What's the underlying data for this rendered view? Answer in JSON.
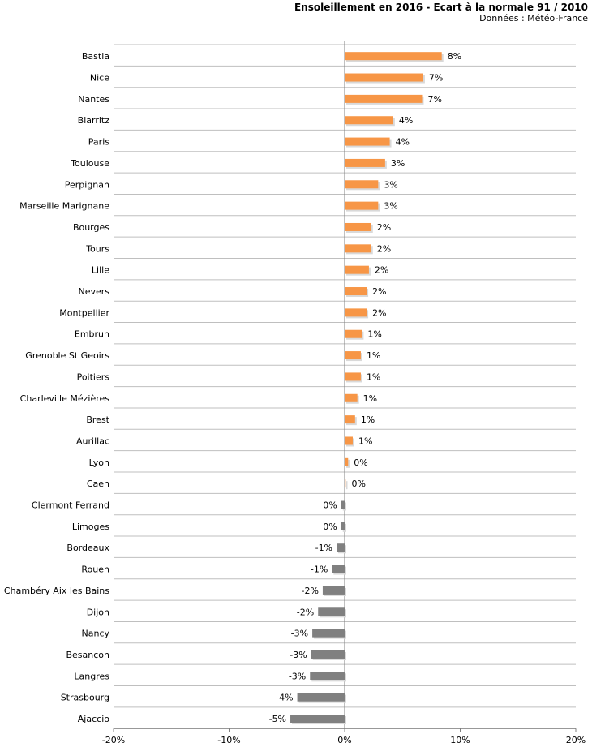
{
  "chart_data": {
    "type": "bar",
    "orientation": "horizontal",
    "title": "Ensoleillement en 2016 - Ecart à la normale 91 / 2010",
    "subtitle": "Données : Météo-France",
    "xlim": [
      -20,
      20
    ],
    "xticks": [
      -20,
      -10,
      0,
      10,
      20
    ],
    "xtick_labels": [
      "-20%",
      "-10%",
      "0%",
      "10%",
      "20%"
    ],
    "categories": [
      "Bastia",
      "Nice",
      "Nantes",
      "Biarritz",
      "Paris",
      "Toulouse",
      "Perpignan",
      "Marseille Marignane",
      "Bourges",
      "Tours",
      "Lille",
      "Nevers",
      "Montpellier",
      "Embrun",
      "Grenoble St Geoirs",
      "Poitiers",
      "Charleville Mézières",
      "Brest",
      "Aurillac",
      "Lyon",
      "Caen",
      "Clermont Ferrand",
      "Limoges",
      "Bordeaux",
      "Rouen",
      "Chambéry Aix les Bains",
      "Dijon",
      "Nancy",
      "Besançon",
      "Langres",
      "Strasbourg",
      "Ajaccio"
    ],
    "values": [
      8.4,
      6.8,
      6.7,
      4.2,
      3.9,
      3.5,
      2.9,
      2.9,
      2.3,
      2.3,
      2.1,
      1.9,
      1.9,
      1.5,
      1.4,
      1.4,
      1.1,
      0.9,
      0.7,
      0.3,
      0.1,
      -0.3,
      -0.3,
      -0.7,
      -1.1,
      -1.9,
      -2.3,
      -2.8,
      -2.9,
      -3.0,
      -4.1,
      -4.7
    ],
    "value_labels": [
      "8%",
      "7%",
      "7%",
      "4%",
      "4%",
      "3%",
      "3%",
      "3%",
      "2%",
      "2%",
      "2%",
      "2%",
      "2%",
      "1%",
      "1%",
      "1%",
      "1%",
      "1%",
      "1%",
      "0%",
      "0%",
      "0%",
      "0%",
      "-1%",
      "-1%",
      "-2%",
      "-2%",
      "-3%",
      "-3%",
      "-3%",
      "-4%",
      "-5%"
    ],
    "colors": {
      "positive": "#f79646",
      "positive_faint": "#fbc8a0",
      "negative": "#808080",
      "shadow": "#d9d9d9",
      "gridline": "#bfbfbf",
      "axis": "#808080"
    },
    "grid": true
  }
}
